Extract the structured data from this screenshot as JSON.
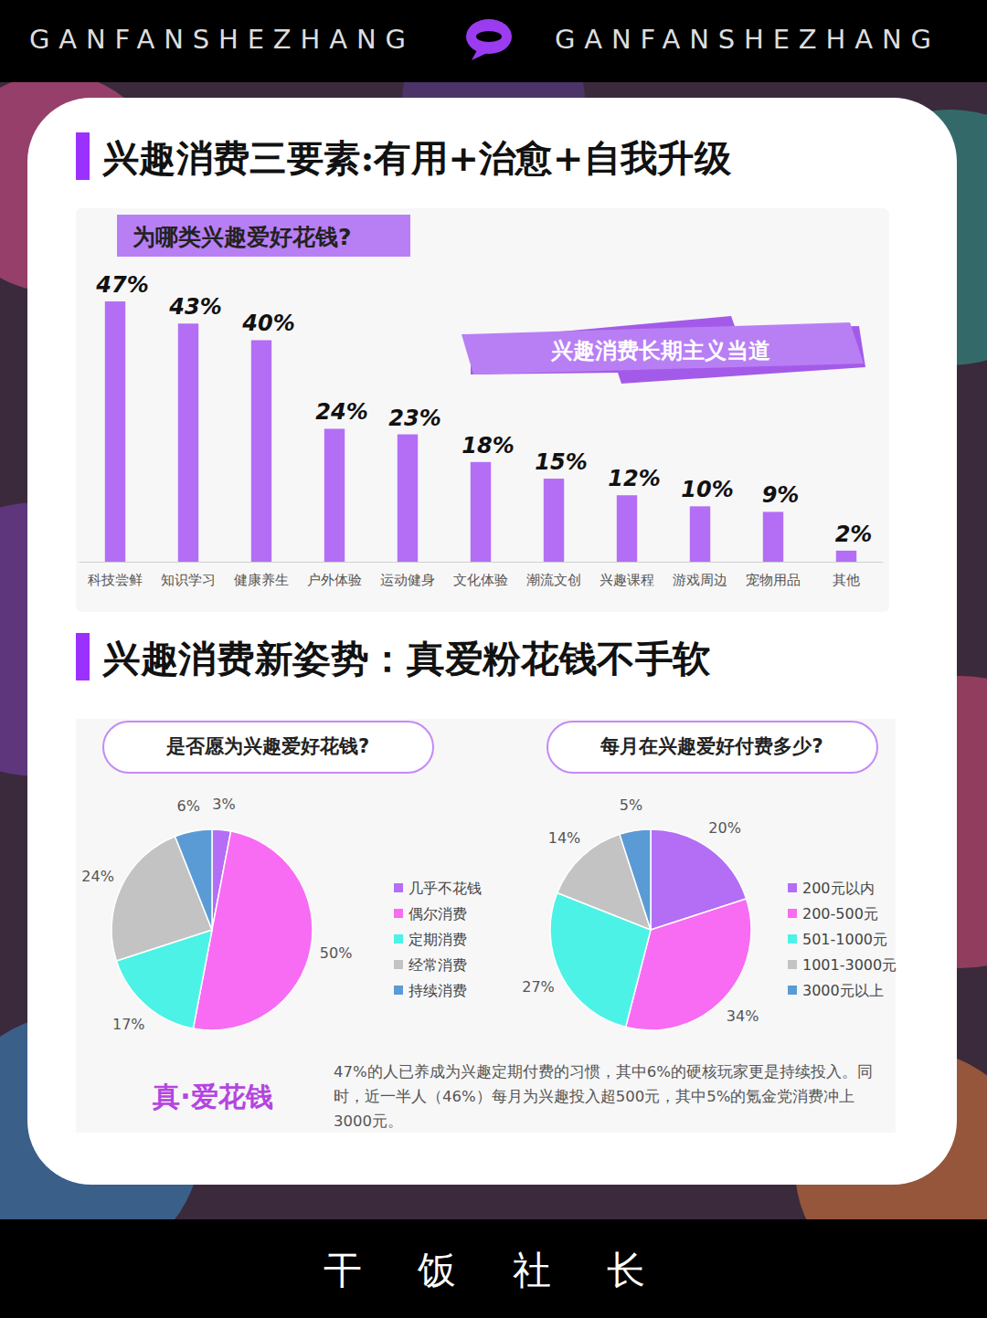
{
  "header": {
    "brand_left": "GANFANSHEZHANG",
    "brand_right": "GANFANSHEZHANG"
  },
  "section_titles": [
    "兴趣消费三要素:有用+治愈+自我升级",
    "兴趣消费新姿势：真爱粉花钱不手软"
  ],
  "chart_data": [
    {
      "type": "bar",
      "title": "为哪类兴趣爱好花钱?",
      "annotation": "兴趣消费长期主义当道",
      "categories": [
        "科技尝鲜",
        "知识学习",
        "健康养生",
        "户外体验",
        "运动健身",
        "文化体验",
        "潮流文创",
        "兴趣课程",
        "游戏周边",
        "宠物用品",
        "其他"
      ],
      "values": [
        47,
        43,
        40,
        24,
        23,
        18,
        15,
        12,
        10,
        9,
        2
      ],
      "value_labels": [
        "47%",
        "43%",
        "40%",
        "24%",
        "23%",
        "18%",
        "15%",
        "12%",
        "10%",
        "9%",
        "2%"
      ],
      "color": "#b36ef5",
      "data_labels": true,
      "tick_labels": "x"
    },
    {
      "type": "pie",
      "title": "是否愿为兴趣爱好花钱?",
      "categories": [
        "几乎不花钱",
        "偶尔消费",
        "定期消费",
        "经常消费",
        "持续消费"
      ],
      "values": [
        3,
        50,
        17,
        24,
        6
      ],
      "value_labels": [
        "3%",
        "50%",
        "17%",
        "24%",
        "6%"
      ],
      "colors": [
        "#b36ef5",
        "#f76cf3",
        "#4cf2e5",
        "#c3c3c3",
        "#5b9bd5"
      ],
      "data_labels": true,
      "legend": "right"
    },
    {
      "type": "pie",
      "title": "每月在兴趣爱好付费多少?",
      "categories": [
        "200元以内",
        "200-500元",
        "501-1000元",
        "1001-3000元",
        "3000元以上"
      ],
      "values": [
        20,
        34,
        27,
        14,
        5
      ],
      "value_labels": [
        "20%",
        "34%",
        "27%",
        "14%",
        "5%"
      ],
      "colors": [
        "#b36ef5",
        "#f76cf3",
        "#4cf2e5",
        "#c3c3c3",
        "#5b9bd5"
      ],
      "data_labels": true,
      "legend": "right"
    }
  ],
  "summary": {
    "heading": "真·爱花钱",
    "text": "47%的人已养成为兴趣定期付费的习惯，其中6%的硬核玩家更是持续投入。同时，近一半人（46%）每月为兴趣投入超500元，其中5%的氪金党消费冲上3000元。"
  },
  "footer": {
    "text": "干 饭 社 长"
  }
}
